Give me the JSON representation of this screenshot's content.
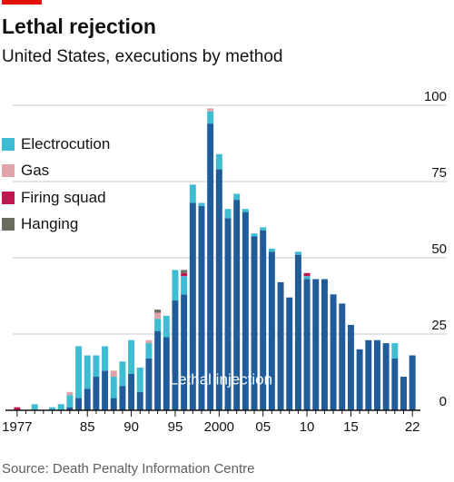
{
  "header": {
    "title": "Lethal rejection",
    "subtitle": "United States, executions by method"
  },
  "legend": [
    {
      "label": "Electrocution",
      "color": "#3ebcd2"
    },
    {
      "label": "Gas",
      "color": "#e0a3a8"
    },
    {
      "label": "Firing squad",
      "color": "#c0174f"
    },
    {
      "label": "Hanging",
      "color": "#6b6b60"
    }
  ],
  "footer": {
    "source": "Source: Death Penalty Information Centre"
  },
  "colors": {
    "brand_red": "#e3120b",
    "lethal_injection": "#1f5c99",
    "electrocution": "#3ebcd2",
    "gas": "#e0a3a8",
    "firing_squad": "#c0174f",
    "hanging": "#6b6b60",
    "gridline": "#c8c8c8",
    "axis": "#121212"
  },
  "chart_data": {
    "type": "bar",
    "stacked": true,
    "inline_label": "Lethal injection",
    "categories": [
      1977,
      1978,
      1979,
      1980,
      1981,
      1982,
      1983,
      1984,
      1985,
      1986,
      1987,
      1988,
      1989,
      1990,
      1991,
      1992,
      1993,
      1994,
      1995,
      1996,
      1997,
      1998,
      1999,
      2000,
      2001,
      2002,
      2003,
      2004,
      2005,
      2006,
      2007,
      2008,
      2009,
      2010,
      2011,
      2012,
      2013,
      2014,
      2015,
      2016,
      2017,
      2018,
      2019,
      2020,
      2021,
      2022
    ],
    "x_tick_labels": [
      {
        "year": 1977,
        "label": "1977"
      },
      {
        "year": 1985,
        "label": "85"
      },
      {
        "year": 1990,
        "label": "90"
      },
      {
        "year": 1995,
        "label": "95"
      },
      {
        "year": 2000,
        "label": "2000"
      },
      {
        "year": 2005,
        "label": "05"
      },
      {
        "year": 2010,
        "label": "10"
      },
      {
        "year": 2015,
        "label": "15"
      },
      {
        "year": 2022,
        "label": "22"
      }
    ],
    "y_ticks": [
      0,
      25,
      50,
      75,
      100
    ],
    "ylim": [
      0,
      100
    ],
    "series": [
      {
        "name": "Lethal injection",
        "color": "#1f5c99",
        "values": [
          0,
          0,
          0,
          0,
          0,
          0,
          1,
          4,
          7,
          11,
          13,
          4,
          8,
          12,
          6,
          17,
          26,
          24,
          36,
          38,
          68,
          67,
          94,
          79,
          63,
          69,
          65,
          57,
          59,
          52,
          42,
          37,
          51,
          43,
          43,
          43,
          38,
          35,
          28,
          20,
          23,
          23,
          22,
          17,
          11,
          18
        ]
      },
      {
        "name": "Electrocution",
        "color": "#3ebcd2",
        "values": [
          0,
          0,
          2,
          0,
          1,
          2,
          4,
          17,
          11,
          7,
          8,
          7,
          8,
          11,
          8,
          5,
          4,
          7,
          10,
          6,
          6,
          1,
          4,
          5,
          3,
          2,
          1,
          1,
          1,
          1,
          0,
          0,
          1,
          1,
          0,
          0,
          0,
          0,
          0,
          0,
          0,
          0,
          0,
          5,
          0,
          0
        ]
      },
      {
        "name": "Gas",
        "color": "#e0a3a8",
        "values": [
          0,
          0,
          0,
          0,
          0,
          0,
          1,
          0,
          0,
          0,
          0,
          2,
          0,
          0,
          0,
          1,
          2,
          0,
          0,
          0,
          0,
          0,
          1,
          0,
          0,
          0,
          0,
          0,
          0,
          0,
          0,
          0,
          0,
          0,
          0,
          0,
          0,
          0,
          0,
          0,
          0,
          0,
          0,
          0,
          0,
          0
        ]
      },
      {
        "name": "Firing squad",
        "color": "#c0174f",
        "values": [
          1,
          0,
          0,
          0,
          0,
          0,
          0,
          0,
          0,
          0,
          0,
          0,
          0,
          0,
          0,
          0,
          0,
          0,
          0,
          1,
          0,
          0,
          0,
          0,
          0,
          0,
          0,
          0,
          0,
          0,
          0,
          0,
          0,
          1,
          0,
          0,
          0,
          0,
          0,
          0,
          0,
          0,
          0,
          0,
          0,
          0
        ]
      },
      {
        "name": "Hanging",
        "color": "#6b6b60",
        "values": [
          0,
          0,
          0,
          0,
          0,
          0,
          0,
          0,
          0,
          0,
          0,
          0,
          0,
          0,
          0,
          0,
          1,
          0,
          0,
          1,
          0,
          0,
          0,
          0,
          0,
          0,
          0,
          0,
          0,
          0,
          0,
          0,
          0,
          0,
          0,
          0,
          0,
          0,
          0,
          0,
          0,
          0,
          0,
          0,
          0,
          0
        ]
      }
    ]
  }
}
